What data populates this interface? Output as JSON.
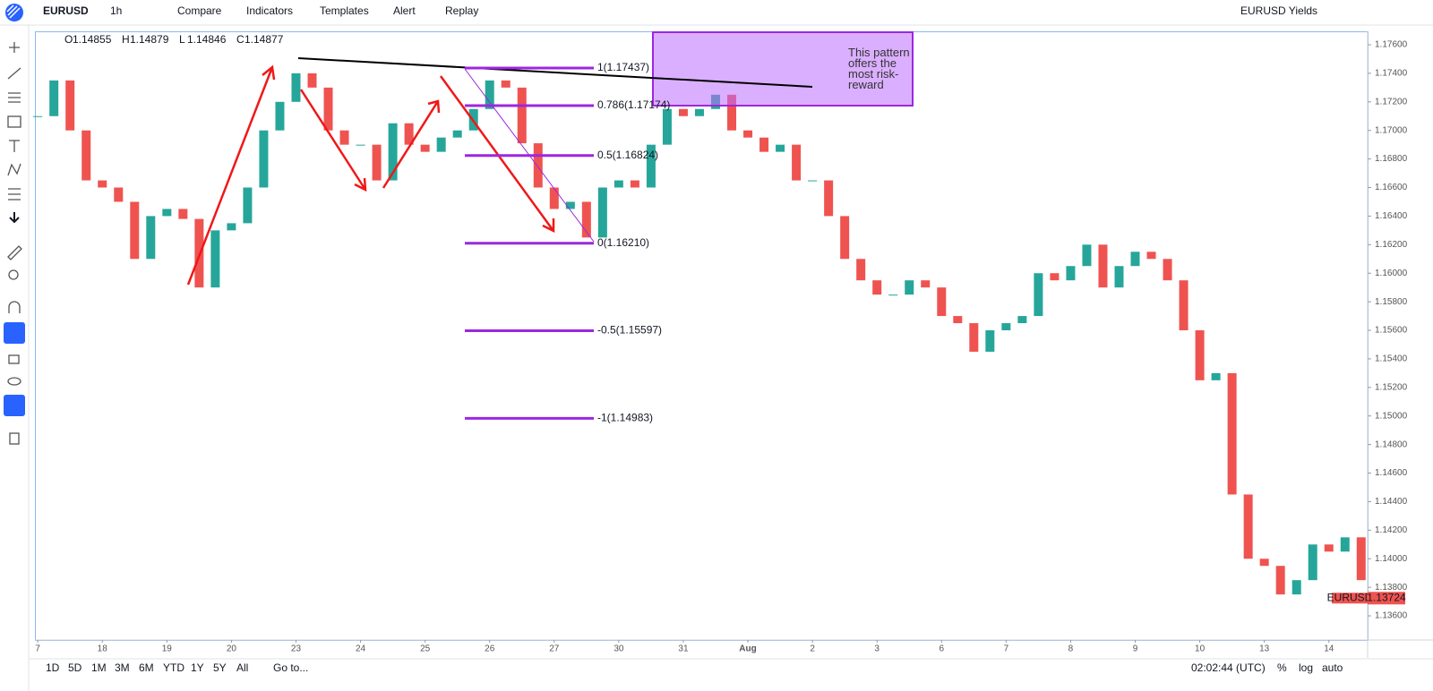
{
  "toolbar": {
    "symbol": "EURUSD",
    "interval": "1h",
    "buttons": [
      "Compare",
      "Indicators",
      "Templates",
      "Alert",
      "Replay"
    ],
    "layout_name": "EURUSD Yields"
  },
  "chart_data": {
    "type": "candlestick",
    "legend": [
      {
        "name": "O",
        "value": 1.14855
      },
      {
        "name": "H",
        "value": 1.14879
      },
      {
        "name": "L",
        "value": 1.14846
      },
      {
        "name": "C",
        "value": 1.14877
      }
    ],
    "up_color": "#26a69a",
    "down_color": "#ef5350",
    "x": [
      0,
      0.25,
      0.5,
      0.75,
      1,
      1.25,
      1.5,
      1.75,
      2,
      2.25,
      2.5,
      2.75,
      3,
      3.25,
      3.5,
      3.75,
      4,
      4.25,
      4.5,
      4.75,
      5,
      5.25,
      5.5,
      5.75,
      6,
      6.25,
      6.5,
      6.75,
      7,
      7.25,
      7.5,
      7.75,
      8,
      8.25,
      8.5,
      8.75,
      9,
      9.25,
      9.5,
      9.75,
      10,
      10.25,
      10.5,
      10.75,
      11,
      11.25,
      11.5,
      11.75,
      12,
      12.25,
      12.5,
      12.75,
      13,
      13.25,
      13.5,
      13.75,
      14,
      14.25,
      14.5,
      14.75,
      15,
      15.25,
      15.5,
      15.75,
      16,
      16.25,
      16.5,
      16.75,
      17,
      17.25,
      17.5,
      17.75,
      18,
      18.25,
      18.5,
      18.75,
      19,
      19.25,
      19.5,
      19.75,
      20,
      20.25,
      20.5
    ],
    "closes": [
      1.171,
      1.1735,
      1.17,
      1.1665,
      1.166,
      1.165,
      1.161,
      1.164,
      1.1645,
      1.1638,
      1.159,
      1.163,
      1.1635,
      1.166,
      1.17,
      1.172,
      1.174,
      1.173,
      1.17,
      1.169,
      1.169,
      1.1665,
      1.1705,
      1.169,
      1.1685,
      1.1695,
      1.17,
      1.1715,
      1.1735,
      1.173,
      1.1691,
      1.166,
      1.1645,
      1.165,
      1.1625,
      1.166,
      1.1665,
      1.166,
      1.169,
      1.1715,
      1.171,
      1.1715,
      1.1725,
      1.17,
      1.1695,
      1.1685,
      1.169,
      1.1665,
      1.1665,
      1.164,
      1.161,
      1.1595,
      1.1585,
      1.1585,
      1.1595,
      1.159,
      1.157,
      1.1565,
      1.1545,
      1.156,
      1.1565,
      1.157,
      1.16,
      1.1595,
      1.1605,
      1.162,
      1.159,
      1.1605,
      1.1615,
      1.161,
      1.1595,
      1.156,
      1.1525,
      1.153,
      1.1445,
      1.14,
      1.1395,
      1.1375,
      1.1385,
      1.141,
      1.1405,
      1.1415,
      1.1385
    ],
    "xlim": [
      -0.03,
      20.6
    ],
    "ylim": [
      1.13431,
      1.17694
    ],
    "xticks": [
      {
        "value": 0,
        "label": "7"
      },
      {
        "value": 1,
        "label": "18"
      },
      {
        "value": 2,
        "label": "19"
      },
      {
        "value": 3,
        "label": "20"
      },
      {
        "value": 4,
        "label": "23"
      },
      {
        "value": 5,
        "label": "24"
      },
      {
        "value": 6,
        "label": "25"
      },
      {
        "value": 7,
        "label": "26"
      },
      {
        "value": 8,
        "label": "27"
      },
      {
        "value": 9,
        "label": "30"
      },
      {
        "value": 10,
        "label": "31"
      },
      {
        "value": 11,
        "label": "Aug"
      },
      {
        "value": 12,
        "label": "2"
      },
      {
        "value": 13,
        "label": "3"
      },
      {
        "value": 14,
        "label": "6"
      },
      {
        "value": 15,
        "label": "7"
      },
      {
        "value": 16,
        "label": "8"
      },
      {
        "value": 17,
        "label": "9"
      },
      {
        "value": 18,
        "label": "10"
      },
      {
        "value": 19,
        "label": "13"
      },
      {
        "value": 20,
        "label": "14"
      }
    ],
    "yticks": [
      {
        "value": 1.136,
        "label": "1.13600"
      },
      {
        "value": 1.138,
        "label": "1.13800"
      },
      {
        "value": 1.14,
        "label": "1.14000"
      },
      {
        "value": 1.142,
        "label": "1.14200"
      },
      {
        "value": 1.144,
        "label": "1.14400"
      },
      {
        "value": 1.146,
        "label": "1.14600"
      },
      {
        "value": 1.148,
        "label": "1.14800"
      },
      {
        "value": 1.15,
        "label": "1.15000"
      },
      {
        "value": 1.152,
        "label": "1.15200"
      },
      {
        "value": 1.154,
        "label": "1.15400"
      },
      {
        "value": 1.156,
        "label": "1.15600"
      },
      {
        "value": 1.158,
        "label": "1.15800"
      },
      {
        "value": 1.16,
        "label": "1.16000"
      },
      {
        "value": 1.162,
        "label": "1.16200"
      },
      {
        "value": 1.164,
        "label": "1.16400"
      },
      {
        "value": 1.166,
        "label": "1.16600"
      },
      {
        "value": 1.168,
        "label": "1.16800"
      },
      {
        "value": 1.17,
        "label": "1.17000"
      },
      {
        "value": 1.172,
        "label": "1.17200"
      },
      {
        "value": 1.174,
        "label": "1.17400"
      },
      {
        "value": 1.176,
        "label": "1.17600"
      }
    ],
    "last_price": {
      "name": "EURUSD",
      "value": 1.13724
    },
    "fib_levels": [
      {
        "label": "1(1.17437)",
        "value": 1.17437
      },
      {
        "label": "0.786(1.17174)",
        "value": 1.17174
      },
      {
        "label": "0.5(1.16824)",
        "value": 1.16824
      },
      {
        "label": "0(1.16210)",
        "value": 1.1621
      },
      {
        "label": "-0.5(1.15597)",
        "value": 1.15597
      },
      {
        "label": "-1(1.14983)",
        "value": 1.14983
      }
    ],
    "fib_color": "#9c27e0",
    "annotation": "This pattern offers the most risk-reward"
  },
  "bottom_bar": {
    "ranges": [
      "1D",
      "5D",
      "1M",
      "3M",
      "6M",
      "YTD",
      "1Y",
      "5Y",
      "All"
    ],
    "goto": "Go to...",
    "clock": "02:02:44 (UTC)",
    "options": [
      "%",
      "log",
      "auto"
    ]
  }
}
